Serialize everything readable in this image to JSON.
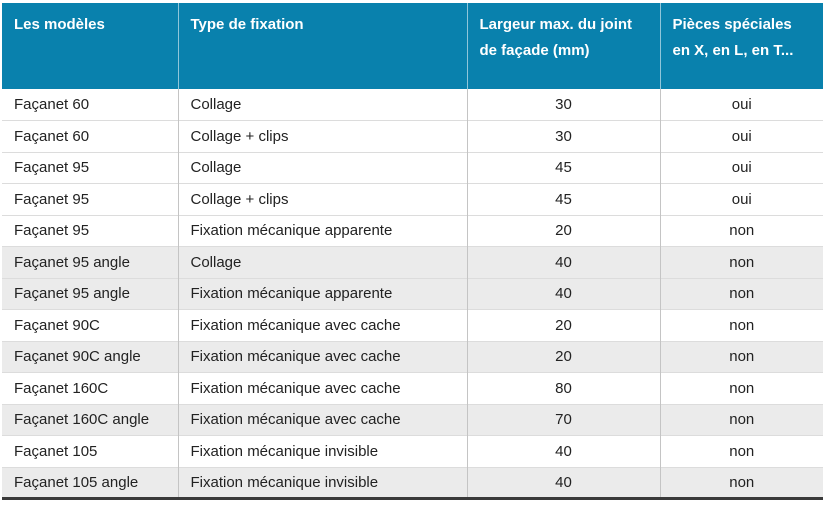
{
  "table": {
    "columns": [
      {
        "label": "Les modèles"
      },
      {
        "label": "Type de fixation"
      },
      {
        "label": "Largeur max. du joint de façade (mm)",
        "lines": [
          "Largeur max. du joint",
          "de façade (mm)"
        ]
      },
      {
        "label": "Pièces spéciales en X, en L, en T...",
        "lines": [
          "Pièces spéciales",
          "en X, en L, en T..."
        ]
      }
    ],
    "rows": [
      {
        "model": "Façanet 60",
        "fixation": "Collage",
        "largeur": "30",
        "pieces": "oui"
      },
      {
        "model": "Façanet 60",
        "fixation": "Collage + clips",
        "largeur": "30",
        "pieces": "oui"
      },
      {
        "model": "Façanet 95",
        "fixation": "Collage",
        "largeur": "45",
        "pieces": "oui"
      },
      {
        "model": "Façanet 95",
        "fixation": "Collage + clips",
        "largeur": "45",
        "pieces": "oui"
      },
      {
        "model": "Façanet 95",
        "fixation": "Fixation mécanique apparente",
        "largeur": "20",
        "pieces": "non"
      },
      {
        "model": "Façanet 95 angle",
        "fixation": "Collage",
        "largeur": "40",
        "pieces": "non"
      },
      {
        "model": "Façanet 95 angle",
        "fixation": "Fixation mécanique apparente",
        "largeur": "40",
        "pieces": "non"
      },
      {
        "model": "Façanet 90C",
        "fixation": "Fixation mécanique avec cache",
        "largeur": "20",
        "pieces": "non"
      },
      {
        "model": "Façanet 90C angle",
        "fixation": "Fixation mécanique avec cache",
        "largeur": "20",
        "pieces": "non"
      },
      {
        "model": "Façanet 160C",
        "fixation": "Fixation mécanique avec cache",
        "largeur": "80",
        "pieces": "non"
      },
      {
        "model": "Façanet 160C angle",
        "fixation": "Fixation mécanique avec cache",
        "largeur": "70",
        "pieces": "non"
      },
      {
        "model": "Façanet 105",
        "fixation": "Fixation mécanique invisible",
        "largeur": "40",
        "pieces": "non"
      },
      {
        "model": "Façanet 105 angle",
        "fixation": "Fixation mécanique invisible",
        "largeur": "40",
        "pieces": "non"
      }
    ],
    "colors": {
      "header_bg": "#0981ad",
      "header_text": "#ffffff",
      "row_alt_bg": "#ebebeb",
      "body_text": "#222222",
      "bottom_border": "#3a3a3a"
    }
  }
}
